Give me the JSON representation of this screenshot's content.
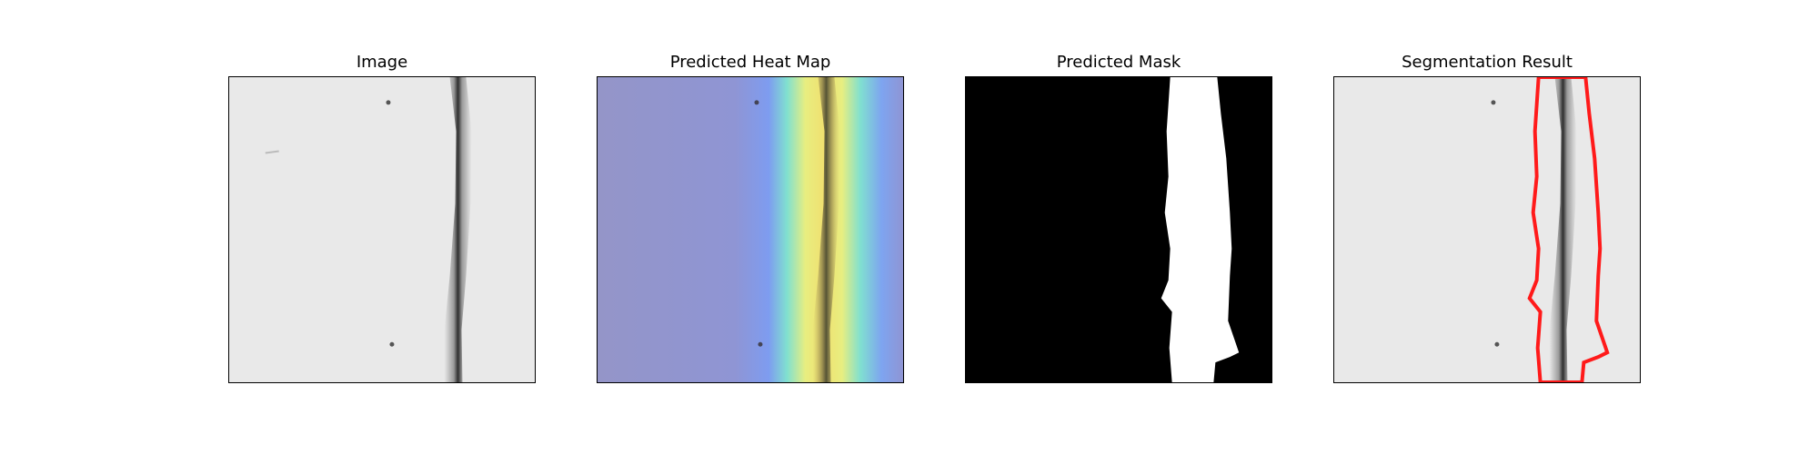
{
  "panels": {
    "image": {
      "title": "Image"
    },
    "heatmap": {
      "title": "Predicted Heat Map"
    },
    "mask": {
      "title": "Predicted Mask"
    },
    "segmentation": {
      "title": "Segmentation Result"
    }
  },
  "colors": {
    "background_gray": "#e9e9e9",
    "crack_dark": "#3a3a3a",
    "heat_low": "#9495c8",
    "heat_mid": "#80e0d0",
    "heat_high": "#f0e070",
    "mask_fg": "#ffffff",
    "mask_bg": "#000000",
    "outline": "#ff1a1a"
  }
}
